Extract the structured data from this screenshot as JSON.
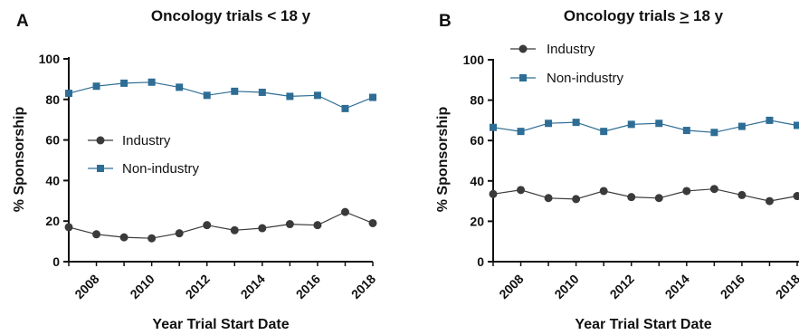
{
  "colors": {
    "industry": "#3a3a3a",
    "non_industry": "#2e6d95",
    "axis": "#111111"
  },
  "chart_data": [
    {
      "type": "line",
      "panel_label": "A",
      "title_text": "Oncology trials < 18 y",
      "xlabel": "Year Trial Start Date",
      "ylabel": "% Sponsorship",
      "xlim": [
        2007,
        2018
      ],
      "ylim": [
        0,
        100
      ],
      "xticks": [
        "2008",
        "2010",
        "2012",
        "2014",
        "2016",
        "2018"
      ],
      "yticks": [
        "0",
        "20",
        "40",
        "60",
        "80",
        "100"
      ],
      "legend": "center-left",
      "grid": false,
      "x": [
        2007,
        2008,
        2009,
        2010,
        2011,
        2012,
        2013,
        2014,
        2015,
        2016,
        2017,
        2018
      ],
      "series": [
        {
          "name": "Industry",
          "marker": "circle",
          "values": [
            17,
            13.5,
            12,
            11.5,
            14,
            18,
            15.5,
            16.5,
            18.5,
            18,
            24.5,
            19
          ]
        },
        {
          "name": "Non-industry",
          "marker": "square",
          "values": [
            83,
            86.5,
            88,
            88.5,
            86,
            82,
            84,
            83.5,
            81.5,
            82,
            75.5,
            81
          ]
        }
      ]
    },
    {
      "type": "line",
      "panel_label": "B",
      "title_parts": [
        "Oncology trials ",
        ">",
        " 18 y"
      ],
      "xlabel": "Year Trial Start Date",
      "ylabel": "% Sponsorship",
      "xlim": [
        2007,
        2018
      ],
      "ylim": [
        0,
        100
      ],
      "xticks": [
        "2008",
        "2010",
        "2012",
        "2014",
        "2016",
        "2018"
      ],
      "yticks": [
        "0",
        "20",
        "40",
        "60",
        "80",
        "100"
      ],
      "legend": "top-left",
      "grid": false,
      "x": [
        2007,
        2008,
        2009,
        2010,
        2011,
        2012,
        2013,
        2014,
        2015,
        2016,
        2017,
        2018
      ],
      "series": [
        {
          "name": "Industry",
          "marker": "circle",
          "values": [
            33.5,
            35.5,
            31.5,
            31,
            35,
            32,
            31.5,
            35,
            36,
            33,
            30,
            32.5
          ]
        },
        {
          "name": "Non-industry",
          "marker": "square",
          "values": [
            66.5,
            64.5,
            68.5,
            69,
            64.5,
            68,
            68.5,
            65,
            64,
            67,
            70,
            67.5
          ]
        }
      ]
    }
  ]
}
